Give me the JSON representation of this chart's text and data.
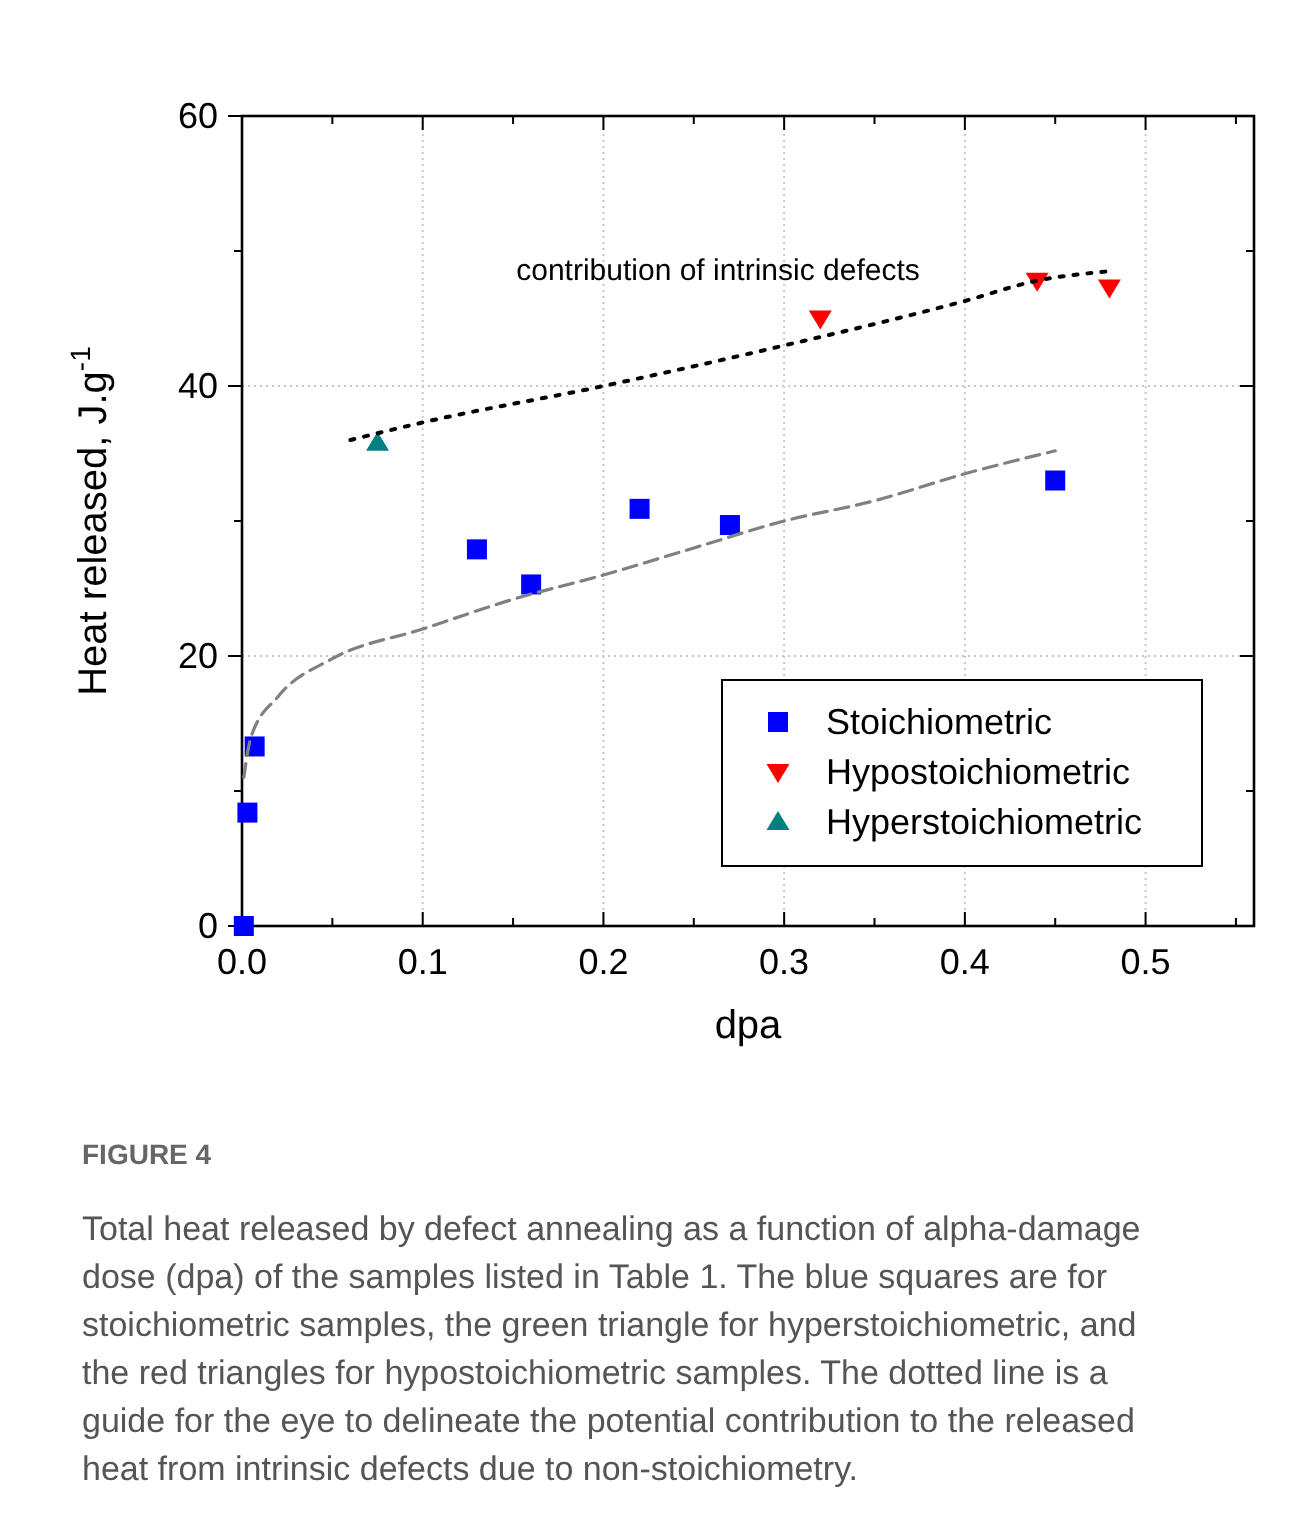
{
  "chart_data": {
    "type": "scatter",
    "title": "FIGURE 4",
    "xlabel": "dpa",
    "ylabel": "Heat released, J.g$^{-1}$",
    "xlim": [
      0,
      0.56
    ],
    "ylim": [
      0,
      60
    ],
    "xticks": [
      {
        "value": 0,
        "label": "0.0"
      },
      {
        "value": 0.05,
        "label": null
      },
      {
        "value": 0.1,
        "label": "0.1"
      },
      {
        "value": 0.15,
        "label": null
      },
      {
        "value": 0.2,
        "label": "0.2"
      },
      {
        "value": 0.25,
        "label": null
      },
      {
        "value": 0.3,
        "label": "0.3"
      },
      {
        "value": 0.35,
        "label": null
      },
      {
        "value": 0.4,
        "label": "0.4"
      },
      {
        "value": 0.45,
        "label": null
      },
      {
        "value": 0.5,
        "label": "0.5"
      },
      {
        "value": 0.55,
        "label": null
      }
    ],
    "yticks": [
      0,
      {
        "value": 10,
        "label": null
      },
      20,
      {
        "value": 30,
        "label": null
      },
      40,
      {
        "value": 50,
        "label": null
      },
      60
    ],
    "grid": true,
    "legend": "bottom right",
    "series": [
      {
        "name": "Stoichiometric",
        "marker": "square",
        "color": "#0000ff",
        "x": [
          0.001,
          0.003,
          0.007,
          0.13,
          0.16,
          0.22,
          0.27,
          0.45
        ],
        "values": [
          0,
          8.4,
          13.3,
          27.9,
          25.3,
          30.9,
          29.7,
          33
        ]
      },
      {
        "name": "Hypostoichiometric",
        "marker": "triangle-down",
        "color": "#ff0000",
        "x": [
          0.32,
          0.44,
          0.48
        ],
        "values": [
          45,
          47.8,
          47.3
        ]
      },
      {
        "name": "Hyperstoichiometric",
        "marker": "triangle",
        "color": "#008080",
        "x": [
          0.075
        ],
        "values": [
          35.8
        ]
      },
      {
        "type": "line",
        "marker": "none",
        "line_style": "dotted",
        "color": "#000000",
        "x": [
          0.06,
          0.1,
          0.2,
          0.3,
          0.4,
          0.44,
          0.48
        ],
        "values": [
          36,
          37.3,
          40,
          43,
          46.3,
          47.8,
          48.5
        ]
      },
      {
        "type": "line",
        "marker": "none",
        "line_style": "dashed",
        "color": "#808080",
        "x": [
          0.001,
          0.005,
          0.02,
          0.05,
          0.1,
          0.15,
          0.2,
          0.25,
          0.3,
          0.35,
          0.4,
          0.45
        ],
        "values": [
          11,
          14,
          17,
          19.8,
          22,
          24.2,
          26,
          28,
          30,
          31.5,
          33.5,
          35.2
        ]
      }
    ],
    "annotations": [
      "contribution of intrinsic defects",
      "Total heat released by defect annealing as a function of alpha-damage dose (dpa) of the samples listed in Table 1. The blue squares are for stoichiometric samples, the green triangle for hyperstoichiometric, and the red triangles for hypostoichiometric samples. The dotted line is a guide for the eye to delineate the potential contribution to the released heat from intrinsic defects due to non-stoichiometry."
    ]
  }
}
